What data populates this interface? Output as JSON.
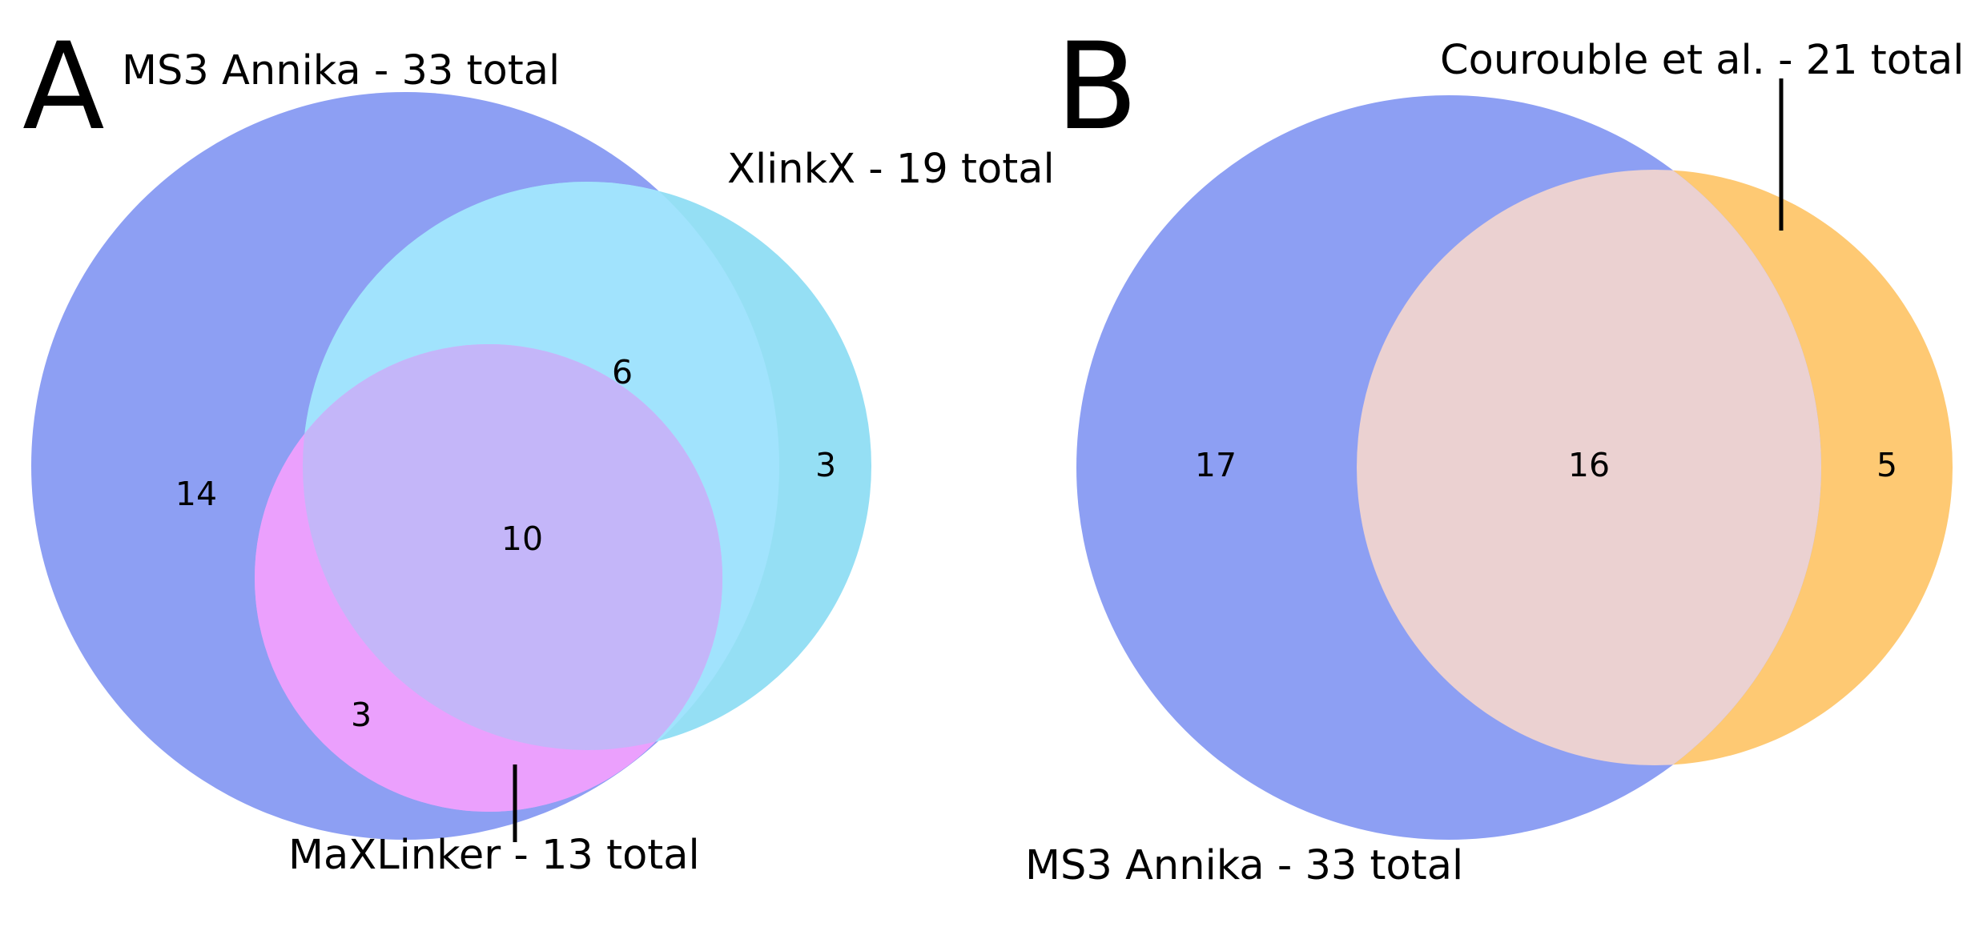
{
  "panels": {
    "a": {
      "letter": "A",
      "sets": {
        "ms3annika": {
          "label": "MS3 Annika - 33 total",
          "color": "#8d9ff3"
        },
        "xlinkx": {
          "label": "XlinkX - 19 total",
          "color": "#95dff4"
        },
        "maxlinker": {
          "label": "MaXLinker - 13 total",
          "color": "#eba0fd"
        }
      },
      "region_colors": {
        "ms3annika_xlinkx": "#a1e3fd",
        "ms3annika_maxlinker": "#eba0fd",
        "all_three": "#c4b6f9"
      },
      "counts": {
        "ms3annika_only": "14",
        "xlinkx_only": "3",
        "ms3annika_xlinkx": "6",
        "ms3annika_maxlinker": "3",
        "all_three": "10"
      }
    },
    "b": {
      "letter": "B",
      "sets": {
        "courouble": {
          "label": "Courouble et al. - 21 total",
          "color": "#fec973"
        },
        "ms3annika": {
          "label": "MS3 Annika - 33 total",
          "color": "#8d9ff3"
        }
      },
      "region_colors": {
        "overlap": "#ebd1d1"
      },
      "counts": {
        "ms3annika_only": "17",
        "overlap": "16",
        "courouble_only": "5"
      }
    }
  }
}
